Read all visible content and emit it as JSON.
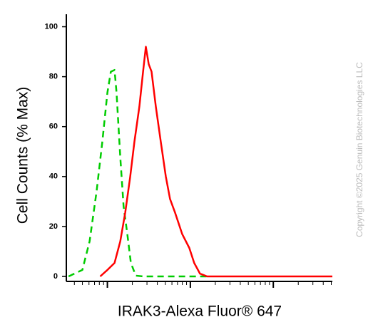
{
  "chart_data": {
    "type": "line",
    "x_label": "IRAK3-Alexa Fluor® 647",
    "y_label": "Cell Counts (% Max)",
    "annotation": "Copyright ©2025 Genuin Biotechnologies LLC",
    "xscale": "log",
    "xlim": [
      32,
      51500
    ],
    "xticks": [
      100,
      1000,
      10000
    ],
    "xminorticks": [
      40,
      50,
      60,
      70,
      80,
      90,
      200,
      300,
      400,
      500,
      600,
      700,
      800,
      900,
      2000,
      3000,
      4000,
      5000,
      6000,
      7000,
      8000,
      9000,
      20000,
      30000,
      40000,
      50000
    ],
    "ylim": [
      -2,
      105
    ],
    "yticks": [
      0,
      20,
      40,
      60,
      80,
      100
    ],
    "series": [
      {
        "color": "#00cc00",
        "dash": true,
        "x": [
          34,
          50,
          61,
          74,
          87,
          100,
          110,
          122,
          129,
          143,
          157,
          174,
          192,
          220,
          269,
          1592
        ],
        "values": [
          0,
          2.6,
          14,
          34,
          54,
          73.6,
          82,
          82.7,
          73.6,
          48,
          28,
          17,
          5.4,
          0.3,
          0,
          0
        ]
      },
      {
        "color": "#ff0000",
        "dash": false,
        "x": [
          82,
          100,
          122,
          143,
          164,
          188,
          212,
          243,
          269,
          291,
          315,
          341,
          384,
          440,
          506,
          569,
          654,
          797,
          971,
          1114,
          1306,
          1592,
          51500
        ],
        "values": [
          0,
          2.6,
          5.4,
          14,
          25.6,
          39.8,
          54,
          68,
          82,
          92,
          85,
          82,
          68,
          54,
          40,
          31,
          25.6,
          17,
          11.4,
          5.4,
          1.1,
          0,
          0
        ]
      }
    ]
  }
}
